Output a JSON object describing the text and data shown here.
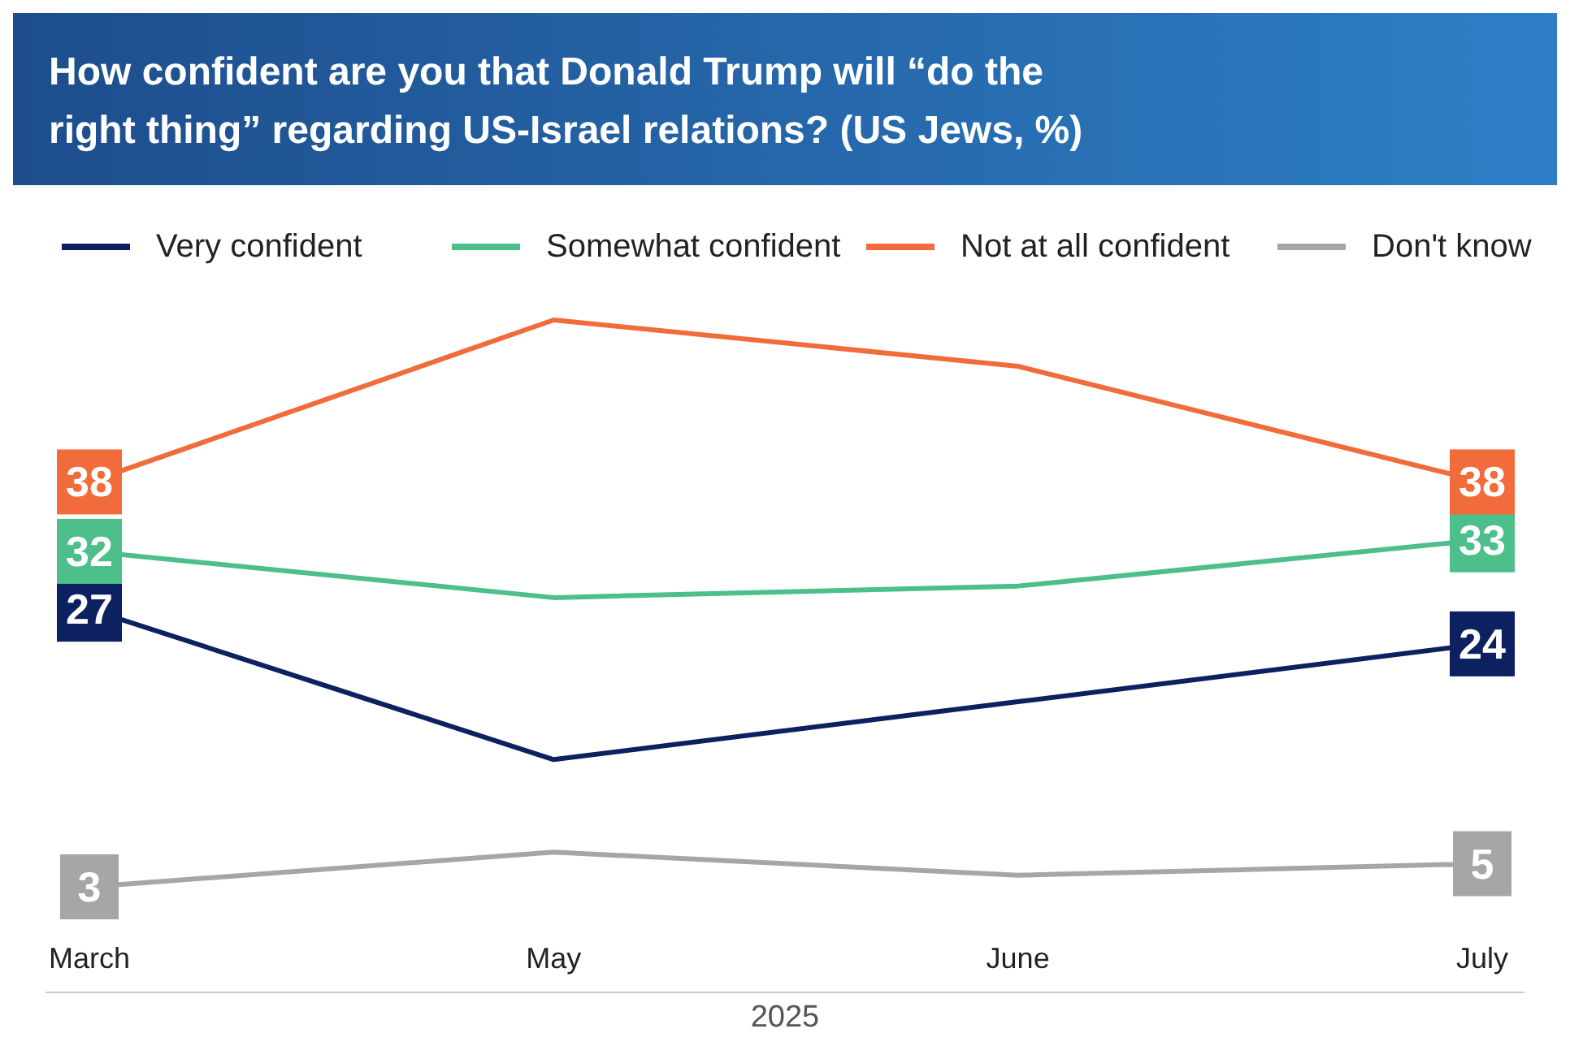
{
  "chart_data": {
    "type": "line",
    "title": "How confident are you that Donald Trump will “do the right thing” regarding US-Israel relations? (US Jews, %)",
    "categories": [
      "March",
      "May",
      "June",
      "July"
    ],
    "xlabel": "2025",
    "legend": "top",
    "grid": false,
    "series": [
      {
        "name": "Very confident",
        "color": "#0d2160",
        "values": [
          27,
          14,
          19,
          24
        ],
        "value_labels": [
          "27",
          null,
          null,
          "24"
        ]
      },
      {
        "name": "Somewhat confident",
        "color": "#4cbf8a",
        "values": [
          32,
          28,
          29,
          33
        ],
        "value_labels": [
          "32",
          null,
          null,
          "33"
        ]
      },
      {
        "name": "Not at all confident",
        "color": "#f26b3a",
        "values": [
          38,
          52,
          48,
          38
        ],
        "value_labels": [
          "38",
          null,
          null,
          "38"
        ]
      },
      {
        "name": "Don't know",
        "color": "#a6a6a6",
        "values": [
          3,
          6,
          4,
          5
        ],
        "value_labels": [
          "3",
          null,
          null,
          "5"
        ]
      }
    ]
  }
}
